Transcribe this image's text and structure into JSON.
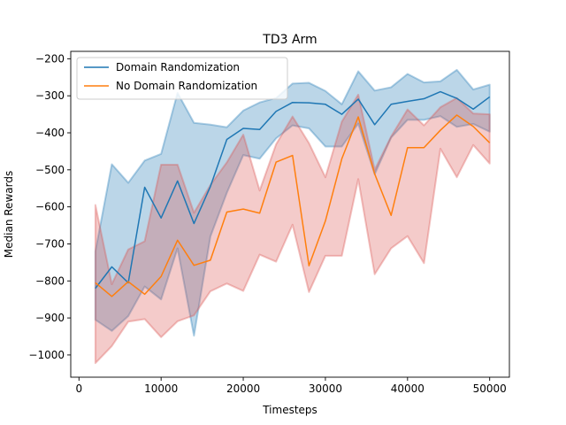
{
  "chart_data": {
    "type": "line",
    "title": "TD3 Arm",
    "xlabel": "Timesteps",
    "ylabel": "Median Rewards",
    "xlim": [
      -1000,
      52400
    ],
    "ylim": [
      -1060,
      -180
    ],
    "xticks": [
      0,
      10000,
      20000,
      30000,
      40000,
      50000
    ],
    "yticks": [
      -1000,
      -900,
      -800,
      -700,
      -600,
      -500,
      -400,
      -300,
      -200
    ],
    "xtick_labels": [
      "0",
      "10000",
      "20000",
      "30000",
      "40000",
      "50000"
    ],
    "ytick_labels": [
      "−1000",
      "−900",
      "−800",
      "−700",
      "−600",
      "−500",
      "−400",
      "−300",
      "−200"
    ],
    "grid": false,
    "legend_position": "top-left",
    "x": [
      2000,
      4000,
      6000,
      8000,
      10000,
      12000,
      14000,
      16000,
      18000,
      20000,
      22000,
      24000,
      26000,
      28000,
      30000,
      32000,
      34000,
      36000,
      38000,
      40000,
      42000,
      44000,
      46000,
      48000,
      50000
    ],
    "series": [
      {
        "name": "Domain Randomization",
        "color": "#1f77b4",
        "band_color": "#1f77b4",
        "values": [
          -820,
          -762,
          -805,
          -547,
          -630,
          -530,
          -645,
          -545,
          -418,
          -388,
          -391,
          -342,
          -318,
          -319,
          -323,
          -350,
          -309,
          -378,
          -323,
          -315,
          -308,
          -289,
          -307,
          -336,
          -303
        ],
        "upper": [
          -720,
          -485,
          -535,
          -475,
          -457,
          -292,
          -373,
          -378,
          -385,
          -340,
          -318,
          -306,
          -267,
          -265,
          -287,
          -323,
          -234,
          -286,
          -277,
          -241,
          -264,
          -261,
          -230,
          -283,
          -270
        ],
        "lower": [
          -905,
          -935,
          -895,
          -815,
          -850,
          -712,
          -948,
          -680,
          -562,
          -460,
          -470,
          -415,
          -380,
          -388,
          -437,
          -437,
          -375,
          -512,
          -413,
          -365,
          -365,
          -355,
          -384,
          -376,
          -397
        ]
      },
      {
        "name": "No Domain Randomization",
        "color": "#ff7f0e",
        "band_color": "#d9534f",
        "values": [
          -805,
          -842,
          -802,
          -836,
          -788,
          -690,
          -758,
          -744,
          -614,
          -606,
          -617,
          -479,
          -461,
          -759,
          -638,
          -470,
          -357,
          -511,
          -623,
          -440,
          -440,
          -393,
          -352,
          -383,
          -427
        ],
        "upper": [
          -595,
          -809,
          -715,
          -693,
          -486,
          -486,
          -616,
          -541,
          -480,
          -405,
          -556,
          -431,
          -356,
          -428,
          -520,
          -370,
          -297,
          -500,
          -410,
          -337,
          -380,
          -331,
          -306,
          -348,
          -350
        ],
        "lower": [
          -1022,
          -976,
          -910,
          -903,
          -952,
          -909,
          -893,
          -828,
          -807,
          -827,
          -729,
          -748,
          -648,
          -830,
          -732,
          -732,
          -525,
          -782,
          -712,
          -679,
          -752,
          -443,
          -520,
          -433,
          -483
        ]
      }
    ]
  }
}
